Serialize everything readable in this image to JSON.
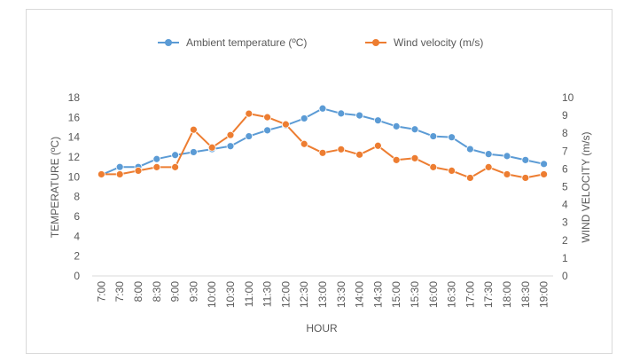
{
  "chart_data": {
    "type": "line",
    "title": "",
    "xlabel": "HOUR",
    "ylabel": "TEMPERATURE (ºC)",
    "y2label": "WIND VELOCITY (m/s)",
    "categories": [
      "7:00",
      "7:30",
      "8:00",
      "8:30",
      "9:00",
      "9:30",
      "10:00",
      "10:30",
      "11:00",
      "11:30",
      "12:00",
      "12:30",
      "13:00",
      "13:30",
      "14:00",
      "14:30",
      "15:00",
      "15:30",
      "16:00",
      "16:30",
      "17:00",
      "17:30",
      "18:00",
      "18:30",
      "19:00"
    ],
    "ylim": [
      0,
      18
    ],
    "yticks": [
      0,
      2,
      4,
      6,
      8,
      10,
      12,
      14,
      16,
      18
    ],
    "y2lim": [
      0,
      10
    ],
    "y2ticks": [
      0,
      1,
      2,
      3,
      4,
      5,
      6,
      7,
      8,
      9,
      10
    ],
    "grid": false,
    "legend_position": "top",
    "series": [
      {
        "name": "Ambient temperature (ºC)",
        "axis": "left",
        "color": "#5b9bd5",
        "values": [
          10.2,
          11.0,
          11.0,
          11.8,
          12.2,
          12.5,
          12.8,
          13.1,
          14.1,
          14.7,
          15.2,
          15.9,
          16.9,
          16.4,
          16.2,
          15.7,
          15.1,
          14.8,
          14.1,
          14.0,
          12.8,
          12.3,
          12.1,
          11.7,
          11.3
        ]
      },
      {
        "name": "Wind velocity (m/s)",
        "axis": "right",
        "color": "#ed7d31",
        "values": [
          5.7,
          5.7,
          5.9,
          6.1,
          6.1,
          8.2,
          7.2,
          7.9,
          9.1,
          8.9,
          8.5,
          7.4,
          6.9,
          7.1,
          6.8,
          7.3,
          6.5,
          6.6,
          6.1,
          5.9,
          5.5,
          6.1,
          5.7,
          5.5,
          5.7
        ]
      }
    ]
  }
}
